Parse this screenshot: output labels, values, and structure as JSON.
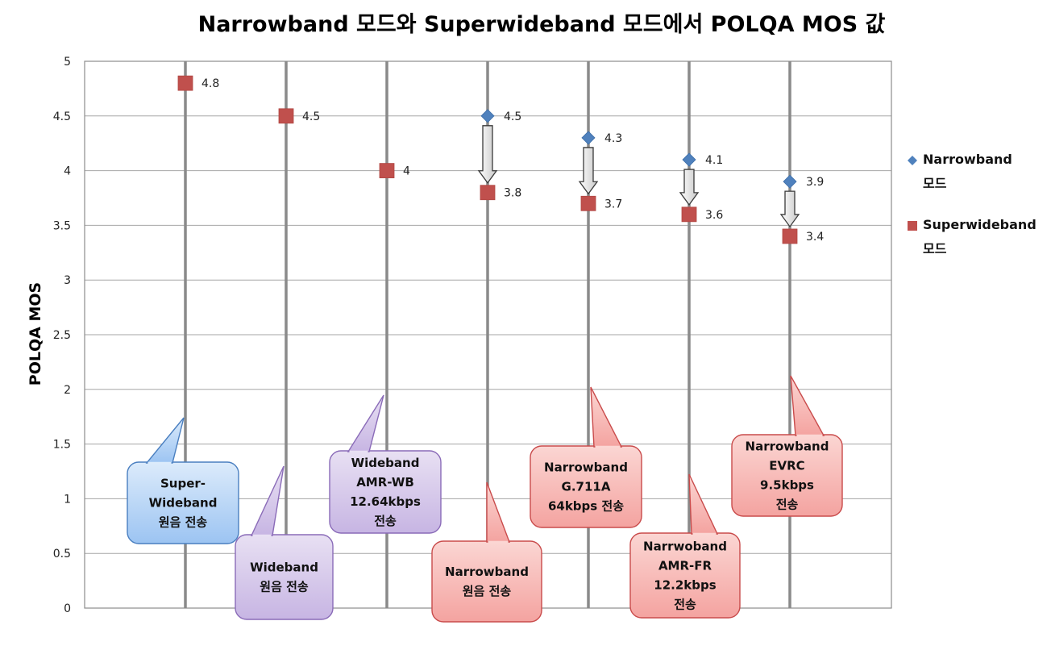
{
  "chart_data": {
    "type": "scatter",
    "title": "Narrowband 모드와 Superwideband 모드에서 POLQA MOS 값",
    "ylabel": "POLQA MOS",
    "xlabel": "",
    "ylim": [
      0,
      5
    ],
    "y_ticks": [
      "0",
      "0.5",
      "1",
      "1.5",
      "2",
      "2.5",
      "3",
      "3.5",
      "4",
      "4.5",
      "5"
    ],
    "grid": true,
    "legend_position": "right",
    "categories": [
      "Super-Wideband 원음 전송",
      "Wideband 원음 전송",
      "Wideband AMR-WB 12.64kbps 전송",
      "Narrowband 원음 전송",
      "Narrowband G.711A 64kbps 전송",
      "Narrwoband AMR-FR 12.2kbps 전송",
      "Narrowband EVRC 9.5kbps 전송"
    ],
    "series": [
      {
        "name": "Narrowband 모드",
        "color": "#4f81bd",
        "marker": "diamond",
        "values": [
          null,
          null,
          null,
          4.5,
          4.3,
          4.1,
          3.9
        ],
        "labels": [
          "",
          "",
          "",
          "4.5",
          "4.3",
          "4.1",
          "3.9"
        ]
      },
      {
        "name": "Superwideband 모드",
        "color": "#c0504d",
        "marker": "square",
        "values": [
          4.8,
          4.5,
          4.0,
          3.8,
          3.7,
          3.6,
          3.4
        ],
        "labels": [
          "4.8",
          "4.5",
          "4",
          "3.8",
          "3.7",
          "3.6",
          "3.4"
        ]
      }
    ],
    "callouts": [
      {
        "lines": [
          "Super-",
          "Wideband",
          "원음 전송"
        ],
        "theme": "blue"
      },
      {
        "lines": [
          "Wideband",
          "원음 전송"
        ],
        "theme": "purple"
      },
      {
        "lines": [
          "Wideband",
          "AMR-WB",
          "12.64kbps",
          "전송"
        ],
        "theme": "purple"
      },
      {
        "lines": [
          "Narrowband",
          "원음 전송"
        ],
        "theme": "red"
      },
      {
        "lines": [
          "Narrowband",
          "G.711A",
          "64kbps 전송"
        ],
        "theme": "red"
      },
      {
        "lines": [
          "Narrwoband",
          "AMR-FR",
          "12.2kbps",
          "전송"
        ],
        "theme": "red"
      },
      {
        "lines": [
          "Narrowband",
          "EVRC",
          "9.5kbps",
          "전송"
        ],
        "theme": "red"
      }
    ],
    "legend": [
      {
        "lines": [
          "Narrowband",
          "모드"
        ],
        "color": "#4f81bd",
        "marker": "diamond"
      },
      {
        "lines": [
          "Superwideband",
          "모드"
        ],
        "color": "#c0504d",
        "marker": "square"
      }
    ]
  }
}
